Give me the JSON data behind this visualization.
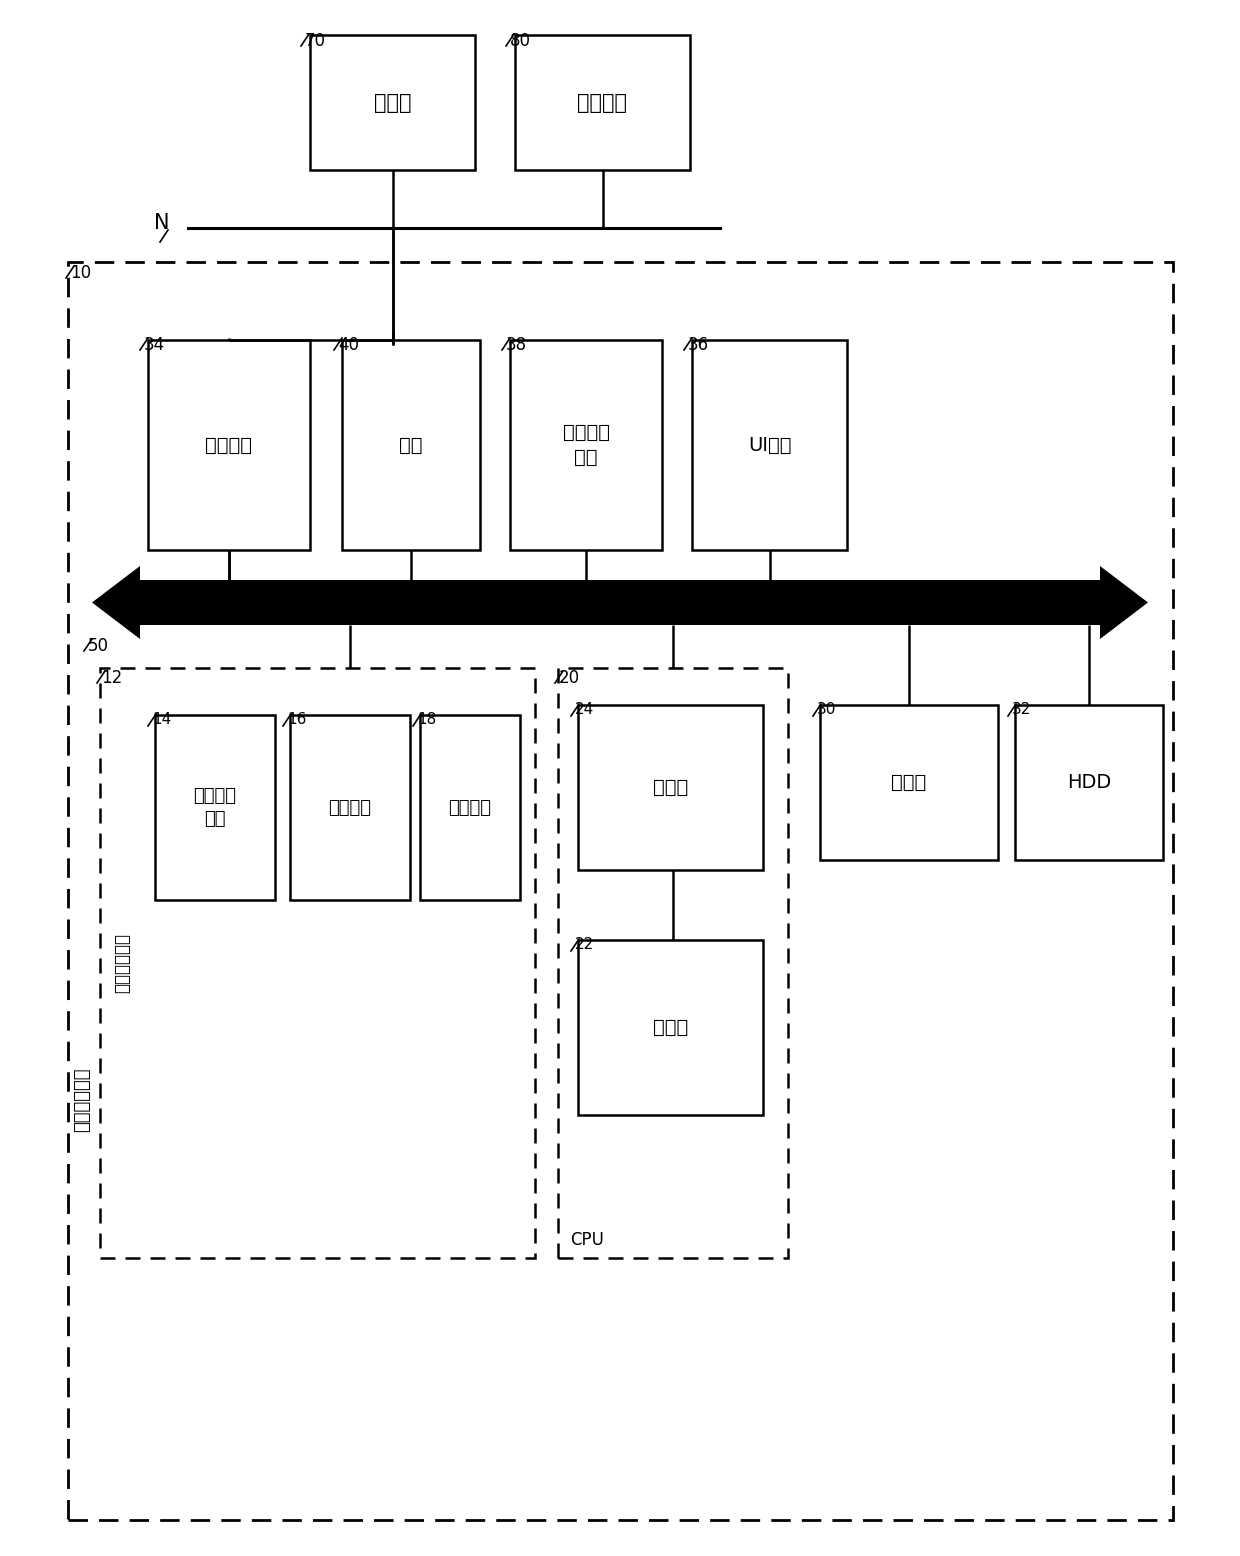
{
  "bg_color": "#ffffff",
  "text_color": "#000000",
  "server_label": "服务器",
  "terminal_label": "终端设备",
  "comm_unit_label": "通信单元",
  "plugin_label": "插件",
  "img_proc_label": "图像处理\n单元",
  "ui_unit_label": "UI单元",
  "img_form_device_label": "图像处理设备",
  "img_form_unit_label": "图像形成单元",
  "img_read_label": "图像读取\n单元",
  "print_label": "打印单元",
  "fax_label": "传真单元",
  "converter_label": "转换器",
  "controller_label": "控制器",
  "mem_label": "存储器",
  "hdd_label": "HDD",
  "cpu_label": "CPU",
  "network_label": "N",
  "label_70": "70",
  "label_80": "80",
  "label_10": "10",
  "label_12": "12",
  "label_14": "14",
  "label_16": "16",
  "label_18": "18",
  "label_20": "20",
  "label_22": "22",
  "label_24": "24",
  "label_30": "30",
  "label_32": "32",
  "label_34": "34",
  "label_36": "36",
  "label_38": "38",
  "label_40": "40",
  "label_50": "50"
}
